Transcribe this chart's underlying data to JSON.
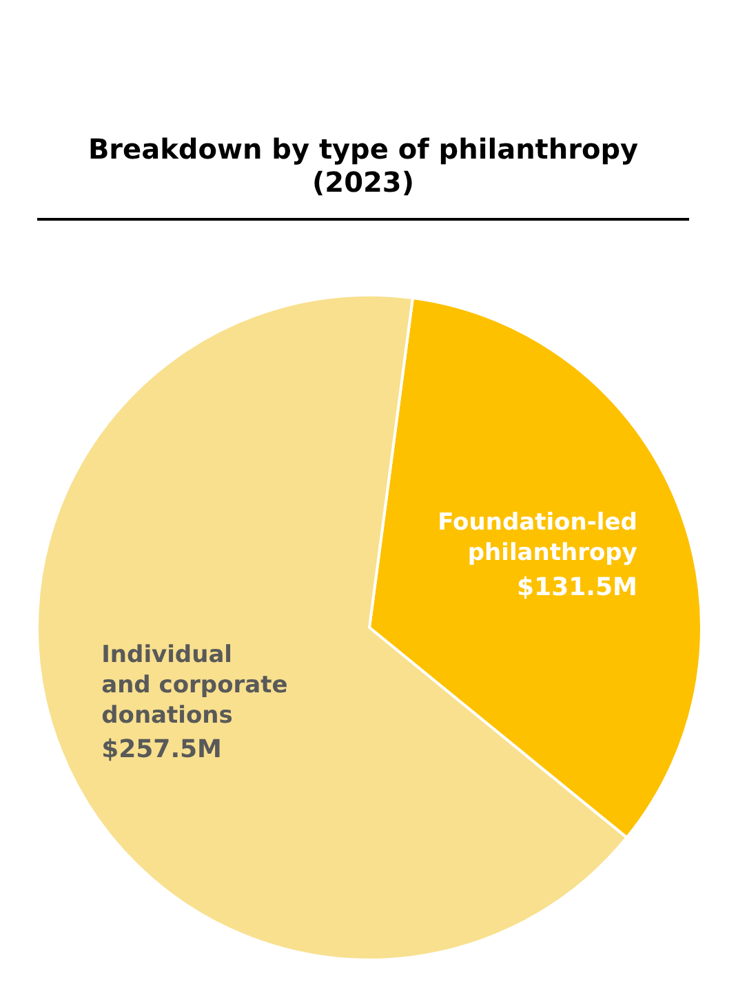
{
  "chart_data": {
    "type": "pie",
    "title": "Breakdown by type of philanthropy (2023)",
    "categories": [
      "Foundation-led\nphilanthropy",
      "Individual\nand corporate\ndonations"
    ],
    "values": [
      131.5,
      257.5
    ],
    "colors": [
      "#fdc100",
      "#f8e08e"
    ],
    "value_labels": [
      "$131.5M",
      "$257.5M"
    ],
    "legend": false
  }
}
